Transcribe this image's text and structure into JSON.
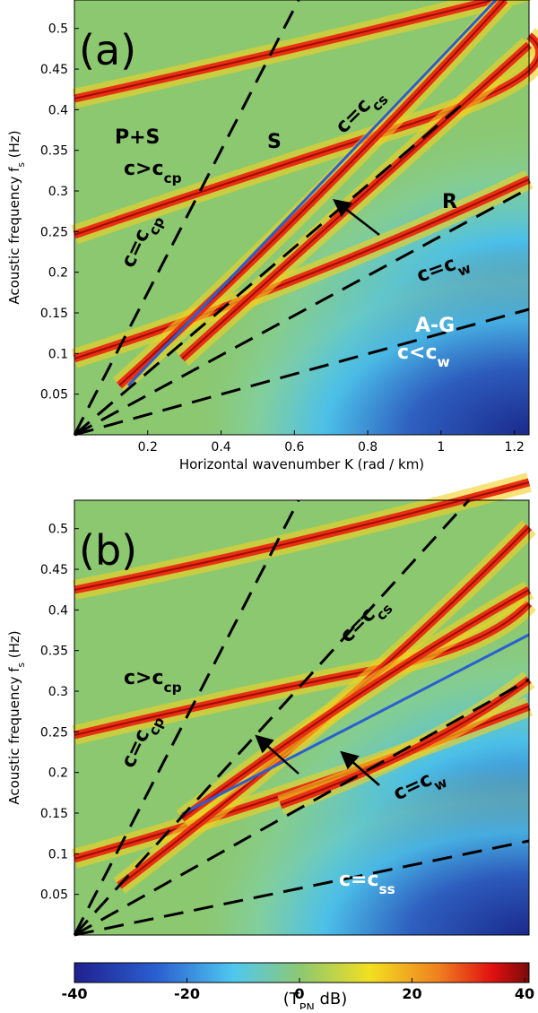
{
  "panels": [
    {
      "type": "heatmap",
      "label": "(a)",
      "x_label": "Horizontal wavenumber K (rad / km)",
      "y_label": {
        "text": "Acoustic frequency  f",
        "sub": "s",
        "rest": " (Hz)"
      },
      "xlim": [
        0,
        1.24
      ],
      "ylim": [
        0,
        0.535
      ],
      "xticks": [
        0.2,
        0.4,
        0.6,
        0.8,
        1,
        1.2
      ],
      "yticks": [
        0.05,
        0.1,
        0.15,
        0.2,
        0.25,
        0.3,
        0.35,
        0.4,
        0.45,
        0.5
      ],
      "annotations": [
        {
          "text": "P+S"
        },
        {
          "text": "c>c",
          "sub": "cp"
        },
        {
          "text": "S"
        },
        {
          "text": "c=c",
          "sub": "cs"
        },
        {
          "text": "R"
        },
        {
          "text": "c=c",
          "sub": "w"
        },
        {
          "text": "A-G"
        },
        {
          "text": "c<c",
          "sub": "w"
        },
        {
          "text": "c=c",
          "sub": "cp"
        }
      ]
    },
    {
      "type": "heatmap",
      "label": "(b)",
      "y_label": {
        "text": "Acoustic frequency  f",
        "sub": "s",
        "rest": " (Hz)"
      },
      "xlim": [
        0,
        1.24
      ],
      "ylim": [
        0,
        0.535
      ],
      "yticks": [
        0.05,
        0.1,
        0.15,
        0.2,
        0.25,
        0.3,
        0.35,
        0.4,
        0.45,
        0.5
      ],
      "annotations": [
        {
          "text": "c>c",
          "sub": "cp"
        },
        {
          "text": "c=c",
          "sub": "cs"
        },
        {
          "text": "c=c",
          "sub": "w"
        },
        {
          "text": "c=c",
          "sub": "cp"
        },
        {
          "text": "c=c",
          "sub": "ss"
        }
      ]
    }
  ],
  "colorbar": {
    "lim": [
      -40,
      40
    ],
    "ticks": [
      -40,
      -20,
      0,
      20,
      40
    ],
    "label": {
      "text": "(T",
      "sub": "PN",
      "rest": "  dB)"
    }
  }
}
